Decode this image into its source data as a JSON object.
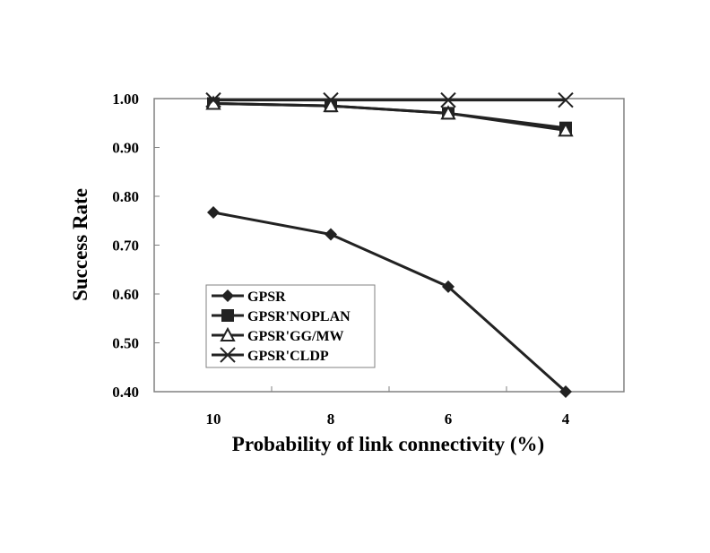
{
  "chart_data": {
    "type": "line",
    "title": "",
    "xlabel": "Probability of link connectivity (%)",
    "ylabel": "Success Rate",
    "categories": [
      "10",
      "8",
      "6",
      "4"
    ],
    "ylim": [
      0.4,
      1.0
    ],
    "yticks": [
      "0.40",
      "0.50",
      "0.60",
      "0.70",
      "0.80",
      "0.90",
      "1.00"
    ],
    "grid": false,
    "legend_position": "bottom-left",
    "series": [
      {
        "name": "GPSR",
        "marker": "diamond",
        "values": [
          0.767,
          0.722,
          0.615,
          0.4
        ]
      },
      {
        "name": "GPSR'NOPLAN",
        "marker": "square",
        "values": [
          0.99,
          0.985,
          0.97,
          0.94
        ]
      },
      {
        "name": "GPSR'GG/MW",
        "marker": "triangle",
        "values": [
          0.99,
          0.985,
          0.97,
          0.935
        ]
      },
      {
        "name": "GPSR'CLDP",
        "marker": "x",
        "values": [
          0.997,
          0.997,
          0.997,
          0.997
        ]
      }
    ],
    "line_color": "#222222"
  }
}
